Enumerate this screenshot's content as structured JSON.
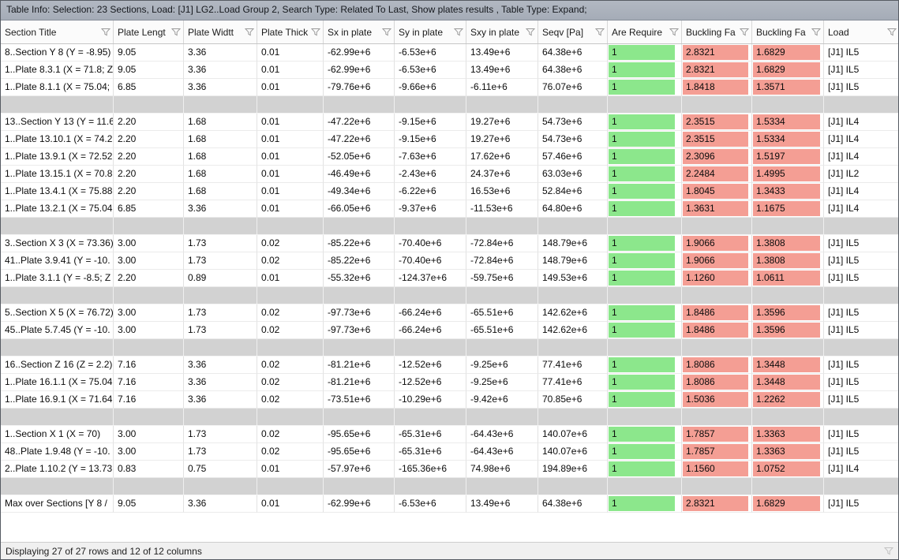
{
  "window": {
    "title": "Table Info: Selection: 23 Sections, Load: [J1] LG2..Load Group 2, Search Type: Related To Last, Show plates results , Table Type: Expand;"
  },
  "colors": {
    "pass_green": "#8ce78c",
    "fail_red": "#f49e94",
    "separator_gray": "#d2d2d2",
    "title_bar": "#a5acb7"
  },
  "icons": {
    "column_filter": "funnel-icon",
    "status_filter": "funnel-icon"
  },
  "table": {
    "columns": [
      "Section Title",
      "Plate Lengt",
      "Plate Widtt",
      "Plate Thick",
      "Sx in plate",
      "Sy in plate",
      "Sxy in plate",
      "Seqv [Pa]",
      "Are Require",
      "Buckling Fa",
      "Buckling Fa",
      "Load"
    ],
    "green_column": 8,
    "red_columns": [
      9,
      10
    ],
    "rows": [
      {
        "cells": [
          "8..Section Y 8 (Y = -8.95)",
          "9.05",
          "3.36",
          "0.01",
          "-62.99e+6",
          "-6.53e+6",
          "13.49e+6",
          "64.38e+6",
          "1",
          "2.8321",
          "1.6829",
          "[J1] IL5"
        ]
      },
      {
        "cells": [
          "1..Plate 8.3.1 (X = 71.8; Z",
          "9.05",
          "3.36",
          "0.01",
          "-62.99e+6",
          "-6.53e+6",
          "13.49e+6",
          "64.38e+6",
          "1",
          "2.8321",
          "1.6829",
          "[J1] IL5"
        ]
      },
      {
        "cells": [
          "1..Plate 8.1.1 (X = 75.04;",
          "6.85",
          "3.36",
          "0.01",
          "-79.76e+6",
          "-9.66e+6",
          "-6.11e+6",
          "76.07e+6",
          "1",
          "1.8418",
          "1.3571",
          "[J1] IL5"
        ]
      },
      {
        "separator": true
      },
      {
        "cells": [
          "13..Section Y 13 (Y = 11.65",
          "2.20",
          "1.68",
          "0.01",
          "-47.22e+6",
          "-9.15e+6",
          "19.27e+6",
          "54.73e+6",
          "1",
          "2.3515",
          "1.5334",
          "[J1] IL4"
        ]
      },
      {
        "cells": [
          "1..Plate 13.10.1 (X = 74.2",
          "2.20",
          "1.68",
          "0.01",
          "-47.22e+6",
          "-9.15e+6",
          "19.27e+6",
          "54.73e+6",
          "1",
          "2.3515",
          "1.5334",
          "[J1] IL4"
        ]
      },
      {
        "cells": [
          "1..Plate 13.9.1 (X = 72.52",
          "2.20",
          "1.68",
          "0.01",
          "-52.05e+6",
          "-7.63e+6",
          "17.62e+6",
          "57.46e+6",
          "1",
          "2.3096",
          "1.5197",
          "[J1] IL4"
        ]
      },
      {
        "cells": [
          "1..Plate 13.15.1 (X = 70.8",
          "2.20",
          "1.68",
          "0.01",
          "-46.49e+6",
          "-2.43e+6",
          "24.37e+6",
          "63.03e+6",
          "1",
          "2.2484",
          "1.4995",
          "[J1] IL2"
        ]
      },
      {
        "cells": [
          "1..Plate 13.4.1 (X = 75.88",
          "2.20",
          "1.68",
          "0.01",
          "-49.34e+6",
          "-6.22e+6",
          "16.53e+6",
          "52.84e+6",
          "1",
          "1.8045",
          "1.3433",
          "[J1] IL4"
        ]
      },
      {
        "cells": [
          "1..Plate 13.2.1 (X = 75.04",
          "6.85",
          "3.36",
          "0.01",
          "-66.05e+6",
          "-9.37e+6",
          "-11.53e+6",
          "64.80e+6",
          "1",
          "1.3631",
          "1.1675",
          "[J1] IL4"
        ]
      },
      {
        "separator": true
      },
      {
        "cells": [
          "3..Section X 3 (X = 73.36)",
          "3.00",
          "1.73",
          "0.02",
          "-85.22e+6",
          "-70.40e+6",
          "-72.84e+6",
          "148.79e+6",
          "1",
          "1.9066",
          "1.3808",
          "[J1] IL5"
        ]
      },
      {
        "cells": [
          "41..Plate 3.9.41 (Y = -10.",
          "3.00",
          "1.73",
          "0.02",
          "-85.22e+6",
          "-70.40e+6",
          "-72.84e+6",
          "148.79e+6",
          "1",
          "1.9066",
          "1.3808",
          "[J1] IL5"
        ]
      },
      {
        "cells": [
          "1..Plate 3.1.1 (Y = -8.5; Z",
          "2.20",
          "0.89",
          "0.01",
          "-55.32e+6",
          "-124.37e+6",
          "-59.75e+6",
          "149.53e+6",
          "1",
          "1.1260",
          "1.0611",
          "[J1] IL5"
        ]
      },
      {
        "separator": true
      },
      {
        "cells": [
          "5..Section X 5 (X = 76.72)",
          "3.00",
          "1.73",
          "0.02",
          "-97.73e+6",
          "-66.24e+6",
          "-65.51e+6",
          "142.62e+6",
          "1",
          "1.8486",
          "1.3596",
          "[J1] IL5"
        ]
      },
      {
        "cells": [
          "45..Plate 5.7.45 (Y = -10.",
          "3.00",
          "1.73",
          "0.02",
          "-97.73e+6",
          "-66.24e+6",
          "-65.51e+6",
          "142.62e+6",
          "1",
          "1.8486",
          "1.3596",
          "[J1] IL5"
        ]
      },
      {
        "separator": true
      },
      {
        "cells": [
          "16..Section Z 16 (Z = 2.2)",
          "7.16",
          "3.36",
          "0.02",
          "-81.21e+6",
          "-12.52e+6",
          "-9.25e+6",
          "77.41e+6",
          "1",
          "1.8086",
          "1.3448",
          "[J1] IL5"
        ]
      },
      {
        "cells": [
          "1..Plate 16.1.1 (X = 75.04",
          "7.16",
          "3.36",
          "0.02",
          "-81.21e+6",
          "-12.52e+6",
          "-9.25e+6",
          "77.41e+6",
          "1",
          "1.8086",
          "1.3448",
          "[J1] IL5"
        ]
      },
      {
        "cells": [
          "1..Plate 16.9.1 (X = 71.64",
          "7.16",
          "3.36",
          "0.02",
          "-73.51e+6",
          "-10.29e+6",
          "-9.42e+6",
          "70.85e+6",
          "1",
          "1.5036",
          "1.2262",
          "[J1] IL5"
        ]
      },
      {
        "separator": true
      },
      {
        "cells": [
          "1..Section X 1 (X = 70)",
          "3.00",
          "1.73",
          "0.02",
          "-95.65e+6",
          "-65.31e+6",
          "-64.43e+6",
          "140.07e+6",
          "1",
          "1.7857",
          "1.3363",
          "[J1] IL5"
        ]
      },
      {
        "cells": [
          "48..Plate 1.9.48 (Y = -10.",
          "3.00",
          "1.73",
          "0.02",
          "-95.65e+6",
          "-65.31e+6",
          "-64.43e+6",
          "140.07e+6",
          "1",
          "1.7857",
          "1.3363",
          "[J1] IL5"
        ]
      },
      {
        "cells": [
          "2..Plate 1.10.2 (Y = 13.73",
          "0.83",
          "0.75",
          "0.01",
          "-57.97e+6",
          "-165.36e+6",
          "74.98e+6",
          "194.89e+6",
          "1",
          "1.1560",
          "1.0752",
          "[J1] IL4"
        ]
      },
      {
        "separator": true
      },
      {
        "cells": [
          "Max over Sections [Y 8 /",
          "9.05",
          "3.36",
          "0.01",
          "-62.99e+6",
          "-6.53e+6",
          "13.49e+6",
          "64.38e+6",
          "1",
          "2.8321",
          "1.6829",
          "[J1] IL5"
        ]
      }
    ]
  },
  "status_bar": {
    "text": "Displaying 27 of 27 rows and 12 of 12 columns"
  }
}
